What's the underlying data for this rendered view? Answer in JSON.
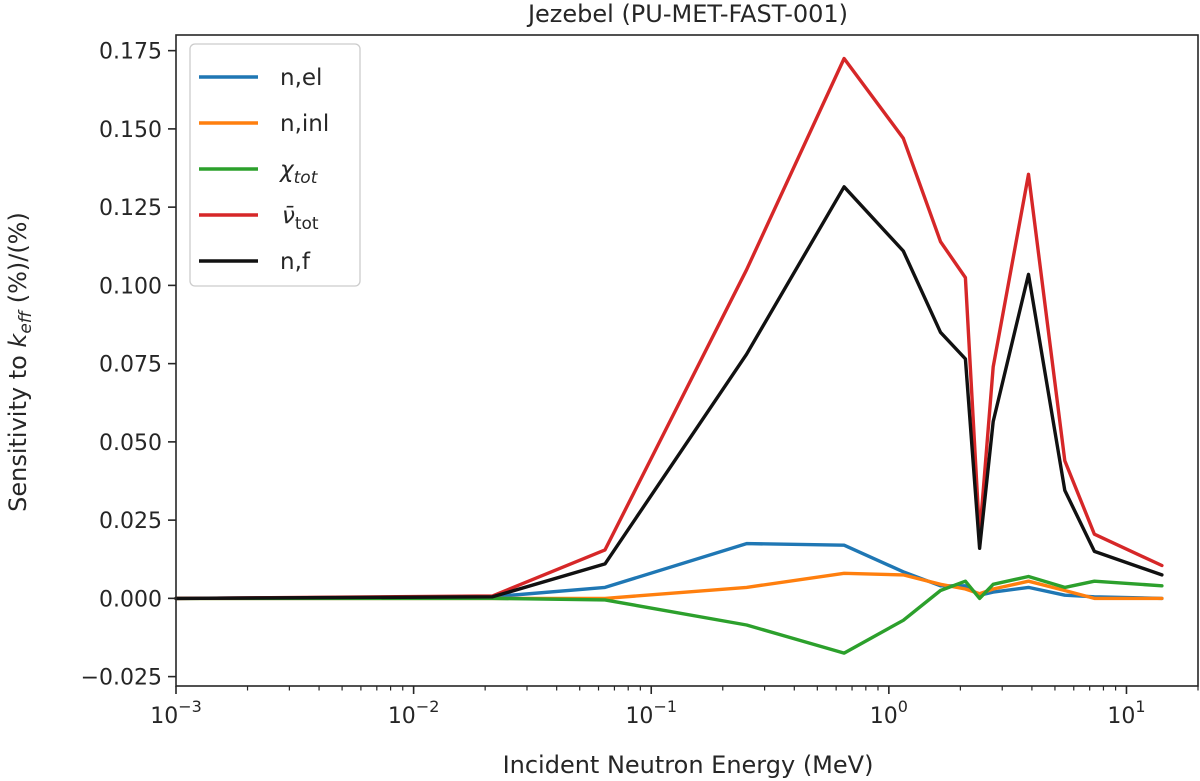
{
  "chart_data": {
    "type": "line",
    "title": "Jezebel (PU-MET-FAST-001)",
    "xlabel": "Incident Neutron Energy (MeV)",
    "ylabel_main": "Sensitivity to ",
    "ylabel_symbol": "k",
    "ylabel_subscript": "eff",
    "ylabel_tail": " (%)/(%)",
    "xscale": "log",
    "xlim": [
      0.001,
      20
    ],
    "ylim": [
      -0.028,
      0.18
    ],
    "x_ticks": [
      {
        "value": 0.001,
        "base": "10",
        "exp": "−3"
      },
      {
        "value": 0.01,
        "base": "10",
        "exp": "−2"
      },
      {
        "value": 0.1,
        "base": "10",
        "exp": "−1"
      },
      {
        "value": 1,
        "base": "10",
        "exp": "0"
      },
      {
        "value": 10,
        "base": "10",
        "exp": "1"
      }
    ],
    "y_ticks": [
      {
        "value": -0.025,
        "label": "−0.025"
      },
      {
        "value": 0.0,
        "label": "0.000"
      },
      {
        "value": 0.025,
        "label": "0.025"
      },
      {
        "value": 0.05,
        "label": "0.050"
      },
      {
        "value": 0.075,
        "label": "0.075"
      },
      {
        "value": 0.1,
        "label": "0.100"
      },
      {
        "value": 0.125,
        "label": "0.125"
      },
      {
        "value": 0.15,
        "label": "0.150"
      },
      {
        "value": 0.175,
        "label": "0.175"
      }
    ],
    "grid": false,
    "legend_position": "top-left",
    "x": [
      0.001,
      0.0215,
      0.0639,
      0.252,
      0.648,
      1.15,
      1.65,
      2.1,
      2.41,
      2.75,
      3.87,
      5.5,
      7.33,
      14.1
    ],
    "series": [
      {
        "name": "n,el",
        "label_main": "n,el",
        "label_sub": "",
        "label_style": "plain",
        "color": "#1f77b4",
        "values": [
          0.0,
          0.0005,
          0.0035,
          0.0175,
          0.017,
          0.0085,
          0.004,
          0.004,
          0.001,
          0.002,
          0.0035,
          0.001,
          0.0005,
          0.0
        ]
      },
      {
        "name": "n,inl",
        "label_main": "n,inl",
        "label_sub": "",
        "label_style": "plain",
        "color": "#ff7f0e",
        "values": [
          0.0,
          0.0,
          0.0,
          0.0035,
          0.008,
          0.0075,
          0.0045,
          0.003,
          0.0015,
          0.003,
          0.0055,
          0.0025,
          0.0,
          0.0
        ]
      },
      {
        "name": "χtot",
        "label_main": "χ",
        "label_sub": "tot",
        "label_style": "italic",
        "color": "#2ca02c",
        "values": [
          0.0,
          0.0,
          -0.0005,
          -0.0085,
          -0.0175,
          -0.007,
          0.0025,
          0.0055,
          0.0,
          0.0045,
          0.007,
          0.0035,
          0.0055,
          0.004
        ]
      },
      {
        "name": "ν̄tot",
        "label_main": "ν̄",
        "label_sub": "tot",
        "label_style": "nubar",
        "color": "#d62728",
        "values": [
          0.0,
          0.0008,
          0.0155,
          0.105,
          0.1725,
          0.147,
          0.114,
          0.1025,
          0.02,
          0.074,
          0.1355,
          0.044,
          0.0205,
          0.0105
        ]
      },
      {
        "name": "n,f",
        "label_main": "n,f",
        "label_sub": "",
        "label_style": "plain",
        "color": "#111111",
        "values": [
          0.0,
          0.0005,
          0.011,
          0.078,
          0.1315,
          0.111,
          0.085,
          0.0765,
          0.016,
          0.0565,
          0.1035,
          0.0345,
          0.015,
          0.0075
        ]
      }
    ]
  }
}
